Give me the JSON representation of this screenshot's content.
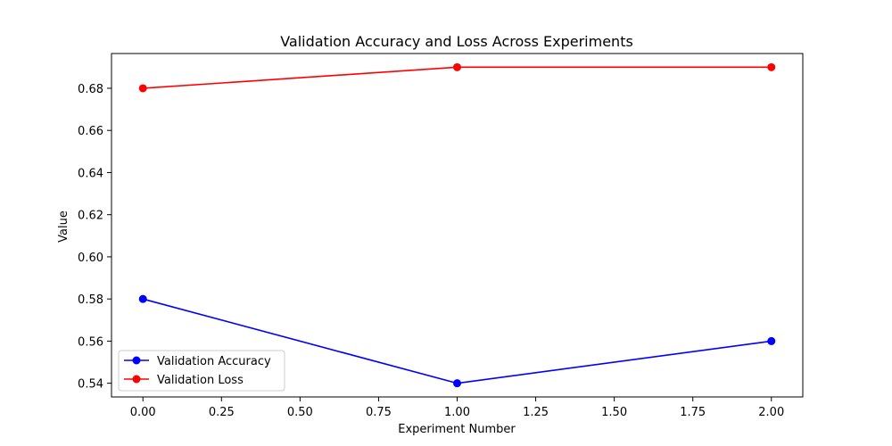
{
  "chart_data": {
    "type": "line",
    "title": "Validation Accuracy and Loss Across Experiments",
    "xlabel": "Experiment Number",
    "ylabel": "Value",
    "x": [
      0,
      1,
      2
    ],
    "xlim": [
      -0.1,
      2.1
    ],
    "ylim": [
      0.5335,
      0.6965
    ],
    "x_ticks": [
      "0.00",
      "0.25",
      "0.50",
      "0.75",
      "1.00",
      "1.25",
      "1.50",
      "1.75",
      "2.00"
    ],
    "x_tick_values": [
      0,
      0.25,
      0.5,
      0.75,
      1.0,
      1.25,
      1.5,
      1.75,
      2.0
    ],
    "y_ticks": [
      "0.54",
      "0.56",
      "0.58",
      "0.60",
      "0.62",
      "0.64",
      "0.66",
      "0.68"
    ],
    "y_tick_values": [
      0.54,
      0.56,
      0.58,
      0.6,
      0.62,
      0.64,
      0.66,
      0.68
    ],
    "grid": false,
    "legend_position": "lower-left",
    "series": [
      {
        "name": "Validation Accuracy",
        "color": "#0000ff",
        "marker": "circle",
        "values": [
          0.58,
          0.54,
          0.56
        ]
      },
      {
        "name": "Validation Loss",
        "color": "#ff0000",
        "marker": "circle",
        "values": [
          0.68,
          0.69,
          0.69
        ]
      }
    ]
  }
}
